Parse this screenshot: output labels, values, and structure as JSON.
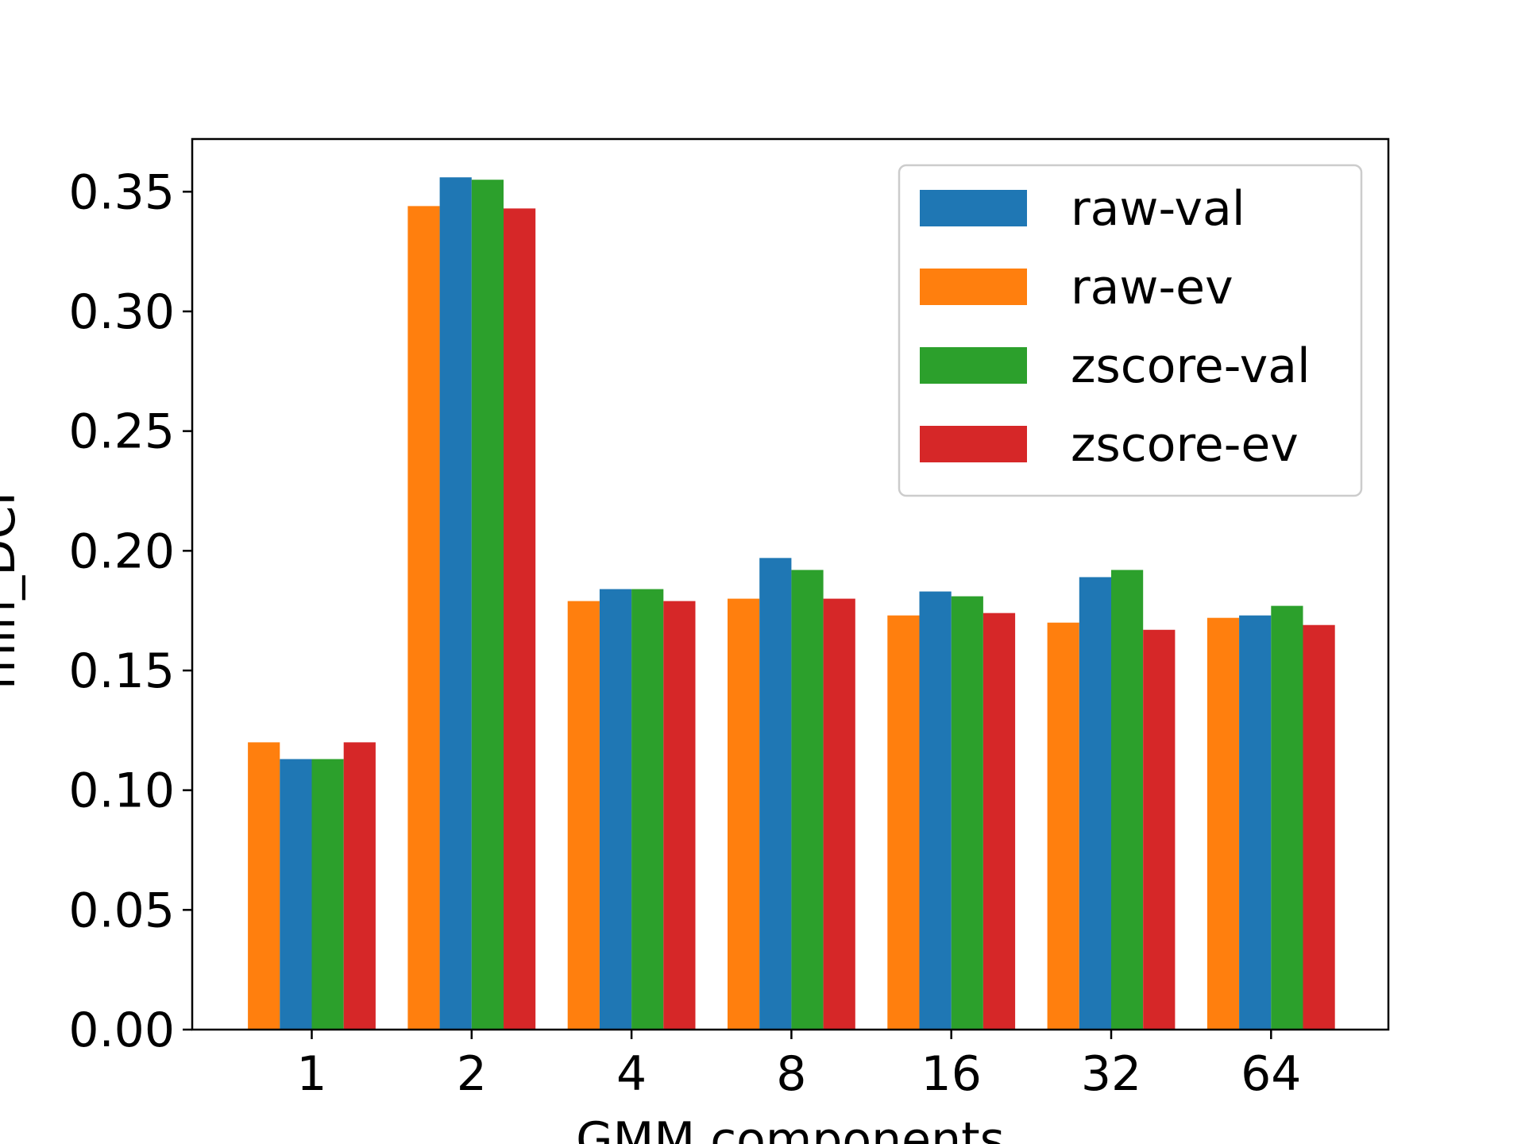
{
  "chart_data": {
    "type": "bar",
    "xlabel": "GMM components",
    "ylabel": "min_DCF",
    "categories": [
      "1",
      "2",
      "4",
      "8",
      "16",
      "32",
      "64"
    ],
    "ylim": [
      0,
      0.372
    ],
    "yticks": [
      "0.00",
      "0.05",
      "0.10",
      "0.15",
      "0.20",
      "0.25",
      "0.30",
      "0.35"
    ],
    "grid": false,
    "legend_position": "top-right",
    "series": [
      {
        "name": "raw-ev",
        "color": "#ff7f0e",
        "values": [
          0.12,
          0.344,
          0.179,
          0.18,
          0.173,
          0.17,
          0.172
        ]
      },
      {
        "name": "raw-val",
        "color": "#1f77b4",
        "values": [
          0.113,
          0.356,
          0.184,
          0.197,
          0.183,
          0.189,
          0.173
        ]
      },
      {
        "name": "zscore-val",
        "color": "#2ca02c",
        "values": [
          0.113,
          0.355,
          0.184,
          0.192,
          0.181,
          0.192,
          0.177
        ]
      },
      {
        "name": "zscore-ev",
        "color": "#d62728",
        "values": [
          0.12,
          0.343,
          0.179,
          0.18,
          0.174,
          0.167,
          0.169
        ]
      }
    ],
    "legend_order": [
      "raw-val",
      "raw-ev",
      "zscore-val",
      "zscore-ev"
    ]
  }
}
